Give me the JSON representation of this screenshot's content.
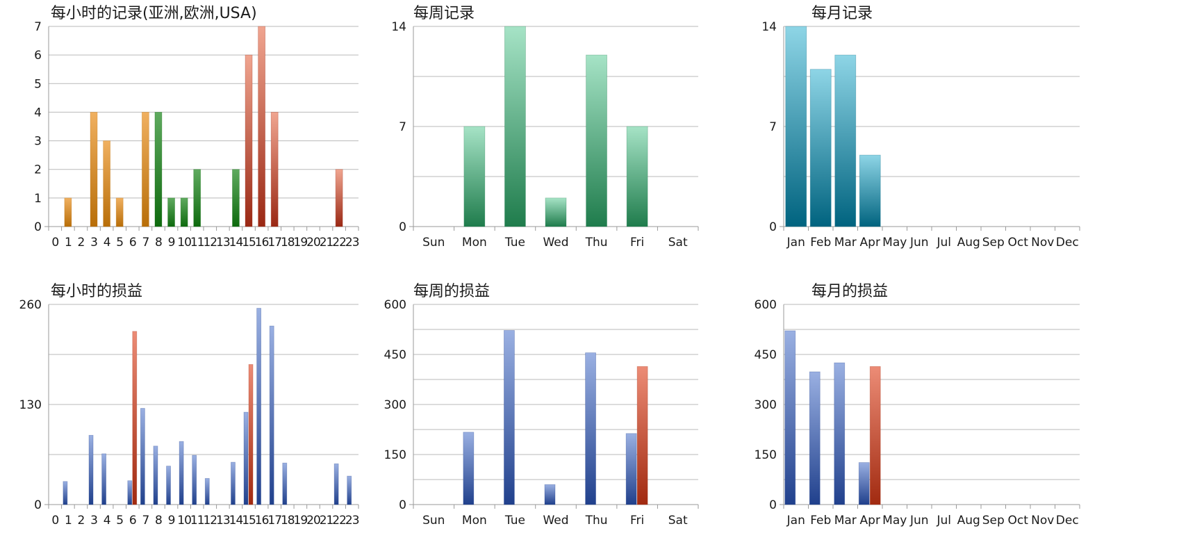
{
  "colors": {
    "orange": [
      "#f0b060",
      "#b86e08"
    ],
    "green": [
      "#5faa5f",
      "#0e6a0e"
    ],
    "red": [
      "#f0a590",
      "#9a2814"
    ],
    "seafoam": [
      "#a6e3c6",
      "#1f7c4c"
    ],
    "teal": [
      "#8ed5e6",
      "#00637f"
    ],
    "blue": [
      "#9ab0e2",
      "#20408c"
    ],
    "profit_red": [
      "#ec8c76",
      "#a12a10"
    ]
  },
  "chart_data": [
    {
      "id": "hourly-records",
      "type": "bar",
      "title": "每小时的记录(亚洲,欧洲,USA)",
      "categories": [
        "0",
        "1",
        "2",
        "3",
        "4",
        "5",
        "6",
        "7",
        "8",
        "9",
        "10",
        "11",
        "12",
        "13",
        "14",
        "15",
        "16",
        "17",
        "18",
        "19",
        "20",
        "21",
        "22",
        "23"
      ],
      "series": [
        {
          "values": [
            0,
            1,
            0,
            4,
            3,
            1,
            0,
            4,
            4,
            1,
            1,
            2,
            0,
            0,
            2,
            6,
            7,
            4,
            0,
            0,
            0,
            0,
            2,
            0
          ],
          "colors": [
            "orange",
            "orange",
            "orange",
            "orange",
            "orange",
            "orange",
            "orange",
            "orange",
            "green",
            "green",
            "green",
            "green",
            "green",
            "green",
            "green",
            "red",
            "red",
            "red",
            "red",
            "red",
            "red",
            "red",
            "red",
            "red"
          ]
        }
      ],
      "ylim": [
        0,
        7
      ],
      "yticks": [
        0,
        1,
        2,
        3,
        4,
        5,
        6,
        7
      ],
      "grid": true
    },
    {
      "id": "weekly-records",
      "type": "bar",
      "title": "每周记录",
      "categories": [
        "Sun",
        "Mon",
        "Tue",
        "Wed",
        "Thu",
        "Fri",
        "Sat"
      ],
      "series": [
        {
          "values": [
            0,
            7,
            14,
            2,
            12,
            7,
            0
          ],
          "color": "seafoam"
        }
      ],
      "ylim": [
        0,
        14
      ],
      "yticks": [
        0,
        7,
        14
      ],
      "grid": true
    },
    {
      "id": "monthly-records",
      "type": "bar",
      "title": "每月记录",
      "categories": [
        "Jan",
        "Feb",
        "Mar",
        "Apr",
        "May",
        "Jun",
        "Jul",
        "Aug",
        "Sep",
        "Oct",
        "Nov",
        "Dec"
      ],
      "series": [
        {
          "values": [
            14,
            11,
            12,
            5,
            0,
            0,
            0,
            0,
            0,
            0,
            0,
            0
          ],
          "color": "teal"
        }
      ],
      "ylim": [
        0,
        14
      ],
      "yticks": [
        0,
        7,
        14
      ],
      "grid": true
    },
    {
      "id": "hourly-profit",
      "type": "bar",
      "title": "每小时的损益",
      "categories": [
        "0",
        "1",
        "2",
        "3",
        "4",
        "5",
        "6",
        "7",
        "8",
        "9",
        "10",
        "11",
        "12",
        "13",
        "14",
        "15",
        "16",
        "17",
        "18",
        "19",
        "20",
        "21",
        "22",
        "23"
      ],
      "series": [
        {
          "values": [
            0,
            30,
            0,
            90,
            66,
            0,
            31,
            125,
            76,
            50,
            82,
            64,
            34,
            0,
            55,
            120,
            255,
            232,
            54,
            0,
            0,
            0,
            53,
            37
          ],
          "color": "blue"
        },
        {
          "values": [
            0,
            0,
            0,
            0,
            0,
            0,
            225,
            0,
            0,
            0,
            0,
            0,
            0,
            0,
            0,
            182,
            0,
            0,
            0,
            0,
            0,
            0,
            0,
            0
          ],
          "color": "profit_red"
        }
      ],
      "ylim": [
        0,
        260
      ],
      "yticks": [
        0,
        130,
        260
      ],
      "grid": true
    },
    {
      "id": "weekly-profit",
      "type": "bar",
      "title": "每周的损益",
      "categories": [
        "Sun",
        "Mon",
        "Tue",
        "Wed",
        "Thu",
        "Fri",
        "Sat"
      ],
      "series": [
        {
          "values": [
            0,
            217,
            522,
            60,
            455,
            213,
            0
          ],
          "color": "blue"
        },
        {
          "values": [
            0,
            0,
            0,
            0,
            0,
            414,
            0
          ],
          "color": "profit_red"
        }
      ],
      "ylim": [
        0,
        600
      ],
      "yticks": [
        0,
        150,
        300,
        450,
        600
      ],
      "grid": true
    },
    {
      "id": "monthly-profit",
      "type": "bar",
      "title": "每月的损益",
      "categories": [
        "Jan",
        "Feb",
        "Mar",
        "Apr",
        "May",
        "Jun",
        "Jul",
        "Aug",
        "Sep",
        "Oct",
        "Nov",
        "Dec"
      ],
      "series": [
        {
          "values": [
            521,
            398,
            425,
            126,
            0,
            0,
            0,
            0,
            0,
            0,
            0,
            0
          ],
          "color": "blue"
        },
        {
          "values": [
            0,
            0,
            0,
            414,
            0,
            0,
            0,
            0,
            0,
            0,
            0,
            0
          ],
          "color": "profit_red"
        }
      ],
      "ylim": [
        0,
        600
      ],
      "yticks": [
        0,
        150,
        300,
        450,
        600
      ],
      "grid": true
    }
  ]
}
